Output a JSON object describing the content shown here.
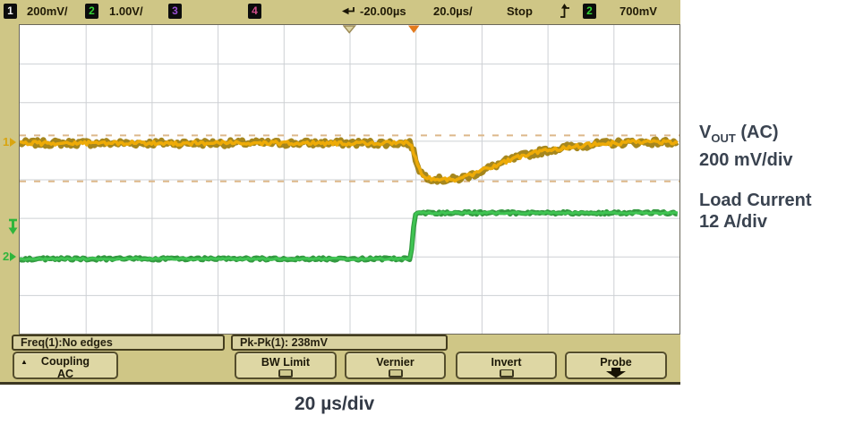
{
  "scope": {
    "topbar": {
      "ch1_badge": "1",
      "ch1_label": "200mV/",
      "ch2_badge": "2",
      "ch2_label": "1.00V/",
      "ch3_badge": "3",
      "ch4_badge": "4",
      "delay": "-20.00µs",
      "timebase": "20.0µs/",
      "run_state": "Stop",
      "trig_source_badge": "2",
      "trig_level": "700mV"
    },
    "measurements": {
      "freq": "Freq(1):No edges",
      "pkpk": "Pk-Pk(1): 238mV"
    },
    "softkeys": {
      "coupling_line1": "Coupling",
      "coupling_line2": "AC",
      "bw_limit": "BW Limit",
      "vernier": "Vernier",
      "invert": "Invert",
      "probe": "Probe"
    }
  },
  "annotations": {
    "v_prefix": "V",
    "v_sub": "OUT",
    "v_suffix": " (AC)",
    "ch1_scale": "200 mV/div",
    "ch2_name": "Load Current",
    "ch2_scale": "12 A/div",
    "time_scale": "20 µs/div"
  },
  "chart_data": {
    "type": "line",
    "x_units": "µs",
    "x_per_div": 20,
    "x_range": [
      -120,
      80
    ],
    "divisions": {
      "horizontal": 10,
      "vertical": 8
    },
    "grid_color": "#cdd0d4",
    "trigger": {
      "t_us": 0,
      "source": "channel 2",
      "level": "700mV",
      "delay_us": -20
    },
    "cursors": {
      "pk_pk_mV": 238,
      "upper_mV": 40,
      "lower_mV": -198,
      "color": "#ddb88a"
    },
    "series": [
      {
        "name": "VOUT (AC)",
        "channel": 1,
        "units": "mV",
        "scale_per_div": 200,
        "color": "#eeab07",
        "color_dark": "#9c7a06",
        "noise_amp": 13,
        "points": [
          [
            -120,
            0
          ],
          [
            -1.5,
            0
          ],
          [
            0,
            -80
          ],
          [
            1,
            -130
          ],
          [
            2,
            -160
          ],
          [
            3.5,
            -175
          ],
          [
            5,
            -183
          ],
          [
            7,
            -188
          ],
          [
            9,
            -190
          ],
          [
            11,
            -189
          ],
          [
            13,
            -184
          ],
          [
            15,
            -176
          ],
          [
            17,
            -165
          ],
          [
            19,
            -152
          ],
          [
            21,
            -138
          ],
          [
            23,
            -124
          ],
          [
            25,
            -110
          ],
          [
            27,
            -97
          ],
          [
            29,
            -85
          ],
          [
            31,
            -74
          ],
          [
            33,
            -64
          ],
          [
            35,
            -55
          ],
          [
            38,
            -44
          ],
          [
            41,
            -34
          ],
          [
            44,
            -26
          ],
          [
            47,
            -19
          ],
          [
            50,
            -13
          ],
          [
            53,
            -8
          ],
          [
            56,
            -4
          ],
          [
            60,
            0
          ],
          [
            64,
            3
          ],
          [
            68,
            4
          ],
          [
            72,
            5
          ],
          [
            76,
            5
          ],
          [
            80,
            5
          ]
        ]
      },
      {
        "name": "Load Current",
        "channel": 2,
        "units": "A",
        "scale_per_div": 12,
        "color": "#3fc452",
        "color_dark": "#1d8f2b",
        "noise_amp": 0.32,
        "points": [
          [
            -120,
            -0.4
          ],
          [
            -1.4,
            -0.4
          ],
          [
            -0.9,
            6
          ],
          [
            -0.3,
            13.6
          ],
          [
            0.6,
            14.1
          ],
          [
            2.5,
            13.9
          ],
          [
            80,
            13.9
          ]
        ]
      }
    ]
  }
}
